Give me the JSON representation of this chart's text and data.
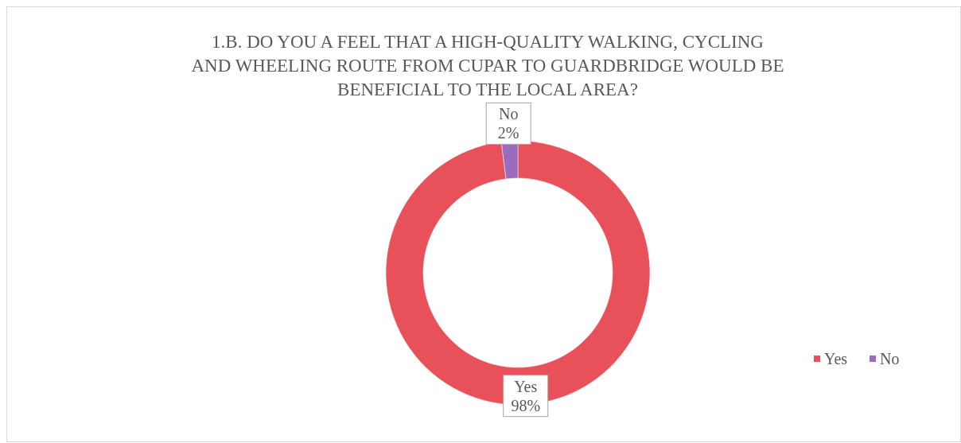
{
  "chart_data": {
    "type": "donut",
    "title": "1.B. DO YOU A FEEL THAT A HIGH-QUALITY WALKING, CYCLING AND WHEELING ROUTE FROM CUPAR TO GUARDBRIDGE WOULD BE BENEFICIAL TO THE LOCAL AREA?",
    "categories": [
      "Yes",
      "No"
    ],
    "values": [
      98,
      2
    ],
    "colors": [
      "#e8505a",
      "#9b6bbf"
    ],
    "value_labels": [
      "98%",
      "2%"
    ],
    "legend": "right"
  }
}
